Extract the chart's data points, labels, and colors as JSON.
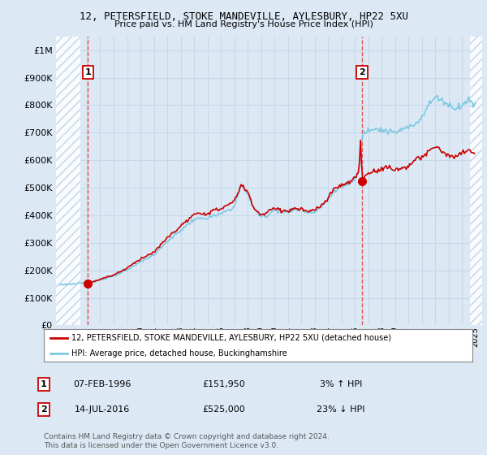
{
  "title": "12, PETERSFIELD, STOKE MANDEVILLE, AYLESBURY, HP22 5XU",
  "subtitle": "Price paid vs. HM Land Registry's House Price Index (HPI)",
  "ylabel_ticks": [
    "£0",
    "£100K",
    "£200K",
    "£300K",
    "£400K",
    "£500K",
    "£600K",
    "£700K",
    "£800K",
    "£900K",
    "£1M"
  ],
  "ytick_values": [
    0,
    100000,
    200000,
    300000,
    400000,
    500000,
    600000,
    700000,
    800000,
    900000,
    1000000
  ],
  "ylim": [
    0,
    1050000
  ],
  "xlim_start": 1993.7,
  "xlim_end": 2025.5,
  "purchase1_x": 1996.09,
  "purchase1_y": 151950,
  "purchase2_x": 2016.54,
  "purchase2_y": 525000,
  "vline_color": "#e84040",
  "marker_color": "#cc0000",
  "hpi_color": "#7ec8e3",
  "price_color": "#cc0000",
  "legend_label1": "12, PETERSFIELD, STOKE MANDEVILLE, AYLESBURY, HP22 5XU (detached house)",
  "legend_label2": "HPI: Average price, detached house, Buckinghamshire",
  "annot1_label": "1",
  "annot2_label": "2",
  "annot1_date": "07-FEB-1996",
  "annot1_price": "£151,950",
  "annot1_hpi": "3% ↑ HPI",
  "annot2_date": "14-JUL-2016",
  "annot2_price": "£525,000",
  "annot2_hpi": "23% ↓ HPI",
  "footer": "Contains HM Land Registry data © Crown copyright and database right 2024.\nThis data is licensed under the Open Government Licence v3.0.",
  "bg_color": "#dce9f5",
  "plot_bg_color": "#dce9f5",
  "hatch_color": "#b8cfe0",
  "grid_color": "#c8d8e8"
}
